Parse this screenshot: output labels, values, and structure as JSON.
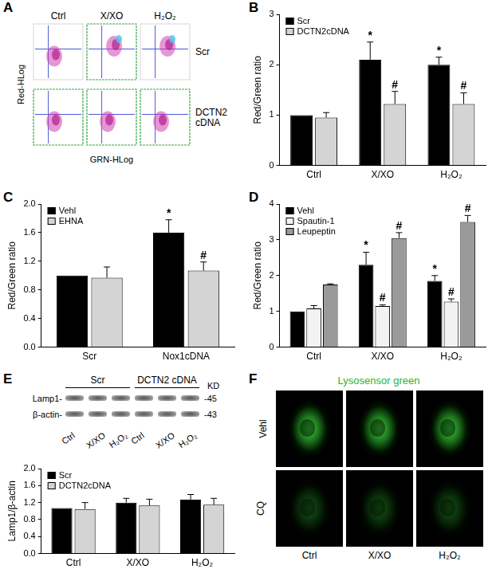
{
  "chart_data": [
    {
      "type": "bar",
      "panel": "B",
      "categories": [
        "Ctrl",
        "X/XO",
        "H₂O₂"
      ],
      "series": [
        {
          "name": "Scr",
          "color": "#000000",
          "values": [
            1.0,
            2.1,
            2.0
          ],
          "errors": [
            0.0,
            0.35,
            0.15
          ],
          "marks": [
            null,
            "*",
            "*"
          ]
        },
        {
          "name": "DCTN2cDNA",
          "color": "#d4d4d4",
          "values": [
            0.95,
            1.22,
            1.22
          ],
          "errors": [
            0.1,
            0.25,
            0.22
          ],
          "marks": [
            null,
            "#",
            "#"
          ]
        }
      ],
      "ylim": [
        0,
        3
      ],
      "yticks": [
        0,
        1,
        2,
        3
      ],
      "y_label": "Red/Green ratio",
      "legend": "top-left",
      "grid": false
    },
    {
      "type": "bar",
      "panel": "C",
      "categories": [
        "Scr",
        "Nox1cDNA"
      ],
      "series": [
        {
          "name": "Vehl",
          "color": "#000000",
          "values": [
            1.0,
            1.6
          ],
          "errors": [
            0.0,
            0.18
          ],
          "marks": [
            null,
            "*"
          ]
        },
        {
          "name": "EHNA",
          "color": "#d4d4d4",
          "values": [
            0.97,
            1.07
          ],
          "errors": [
            0.15,
            0.12
          ],
          "marks": [
            null,
            "#"
          ]
        }
      ],
      "ylim": [
        0,
        2
      ],
      "yticks": [
        {
          "value": 0,
          "label": "0.0"
        },
        0.4,
        0.8,
        1.2,
        1.6,
        {
          "value": 2,
          "label": "2.0"
        }
      ],
      "y_label": "Red/Green ratio",
      "legend": "top-left",
      "grid": false
    },
    {
      "type": "bar",
      "panel": "D",
      "categories": [
        "Ctrl",
        "X/XO",
        "H₂O₂"
      ],
      "series": [
        {
          "name": "Vehl",
          "color": "#000000",
          "values": [
            1.0,
            2.3,
            1.85
          ],
          "errors": [
            0.0,
            0.35,
            0.15
          ],
          "marks": [
            null,
            "*",
            "*"
          ]
        },
        {
          "name": "Spautin-1",
          "color": "#f2f2f2",
          "values": [
            1.08,
            1.15,
            1.27
          ],
          "errors": [
            0.08,
            0.03,
            0.08
          ],
          "marks": [
            null,
            "#",
            "#"
          ]
        },
        {
          "name": "Leupeptin",
          "color": "#9a9a9a",
          "values": [
            1.75,
            3.05,
            3.5
          ],
          "errors": [
            0.02,
            0.15,
            0.18
          ],
          "marks": [
            null,
            "#",
            "#"
          ]
        }
      ],
      "ylim": [
        0,
        4
      ],
      "yticks": [
        0,
        1,
        2,
        3,
        4
      ],
      "y_label": "Red/Green ratio",
      "legend": "top-left",
      "grid": false
    },
    {
      "type": "bar",
      "categories": [
        "Ctrl",
        "X/XO",
        "H₂O₂"
      ],
      "series": [
        {
          "name": "Scr",
          "color": "#000000",
          "values": [
            1.07,
            1.2,
            1.27
          ],
          "errors": [
            0.0,
            0.1,
            0.12
          ]
        },
        {
          "name": "DCTN2cDNA",
          "color": "#d4d4d4",
          "values": [
            1.05,
            1.13,
            1.15
          ],
          "errors": [
            0.15,
            0.15,
            0.15
          ]
        }
      ],
      "ylim": [
        0,
        2
      ],
      "yticks": [
        {
          "value": 0,
          "label": "0.0"
        },
        0.4,
        0.8,
        1.2,
        1.6,
        {
          "value": 2,
          "label": "2.0"
        }
      ],
      "y_label": "Lamp1/β-actin",
      "legend": "top-left",
      "grid": false
    }
  ],
  "panel_A": {
    "label": "A",
    "columns": [
      "Ctrl",
      "X/XO",
      "H₂O₂"
    ],
    "rows": [
      "Scr",
      "DCTN2 cDNA"
    ],
    "x_label": "GRN-HLog",
    "y_label": "Red-HLog"
  },
  "panel_E_blot": {
    "label": "E",
    "groups": [
      "Scr",
      "DCTN2 cDNA"
    ],
    "lanes": [
      "Ctrl",
      "X/XO",
      "H₂O₂",
      "Ctrl",
      "X/XO",
      "H₂O₂"
    ],
    "unit_label": "KD",
    "bands": [
      {
        "name": "Lamp1-",
        "size": "-45"
      },
      {
        "name": "β-actin-",
        "size": "-43"
      }
    ]
  },
  "panel_F": {
    "label": "F",
    "title": "Lysosensor green",
    "rows": [
      "Vehl",
      "CQ"
    ],
    "columns": [
      "Ctrl",
      "X/XO",
      "H₂O₂"
    ]
  }
}
